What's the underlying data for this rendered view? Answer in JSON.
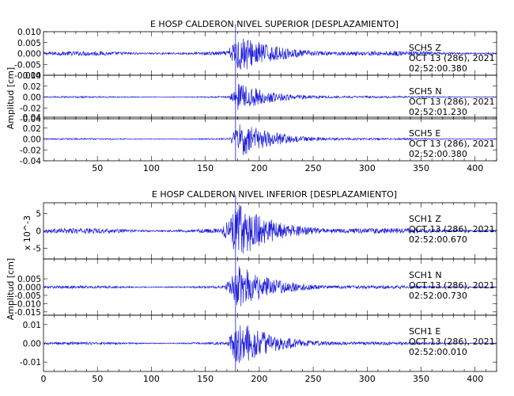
{
  "chart_data": [
    {
      "type": "line",
      "title": "E HOSP CALDERON NIVEL SUPERIOR [DESPLAZAMIENTO]",
      "ylabel": "Amplitud [cm]",
      "xlim": [
        0,
        420
      ],
      "xticks": [
        50,
        100,
        150,
        200,
        250,
        300,
        350,
        400
      ],
      "event_marker_x": 178,
      "series": [
        {
          "name": "SCH5  Z",
          "date": "OCT 13 (286), 2021",
          "time": "02:52:00.380",
          "ylim": [
            -0.01,
            0.01
          ],
          "yticks": [
            "0.010",
            "0.005",
            "0.000",
            "-0.005",
            "-0.010"
          ],
          "peak_amplitude": 0.008,
          "noise_level": 0.0007,
          "onset_x": 170,
          "peak_x": 182
        },
        {
          "name": "SCH5  N",
          "date": "OCT 13 (286), 2021",
          "time": "02:52:01.230",
          "ylim": [
            -0.04,
            0.04
          ],
          "yticks": [
            "0.04",
            "0.02",
            "0.00",
            "-0.02",
            "-0.04"
          ],
          "peak_amplitude": 0.025,
          "noise_level": 0.001,
          "onset_x": 172,
          "peak_x": 181
        },
        {
          "name": "SCH5  E",
          "date": "OCT 13 (286), 2021",
          "time": "02:52:00.380",
          "ylim": [
            -0.04,
            0.04
          ],
          "yticks": [
            "0.04",
            "0.02",
            "0.00",
            "-0.02",
            "-0.04"
          ],
          "peak_amplitude": 0.03,
          "noise_level": 0.001,
          "onset_x": 172,
          "peak_x": 184
        }
      ]
    },
    {
      "type": "line",
      "title": "E HOSP CALDERON NIVEL INFERIOR [DESPLAZAMIENTO]",
      "ylabel": "Amplitud [cm]",
      "xlim": [
        0,
        420
      ],
      "xticks": [
        0,
        50,
        100,
        150,
        200,
        250,
        300,
        350,
        400
      ],
      "event_marker_x": 178,
      "series": [
        {
          "name": "SCH1  Z",
          "date": "OCT 13 (286), 2021",
          "time": "02:52:00.670",
          "ylabel_extra": "x 10^-3",
          "ylim": [
            -8,
            8
          ],
          "yticks": [
            "5",
            "0",
            "-5"
          ],
          "peak_amplitude": 7,
          "noise_level": 0.5,
          "onset_x": 165,
          "peak_x": 182
        },
        {
          "name": "SCH1  N",
          "date": "OCT 13 (286), 2021",
          "time": "02:52:00.730",
          "ylim": [
            -0.017,
            0.017
          ],
          "yticks": [
            "0.005",
            "0.000",
            "-0.005",
            "-0.010",
            "-0.015"
          ],
          "peak_amplitude": 0.013,
          "noise_level": 0.0006,
          "onset_x": 168,
          "peak_x": 180
        },
        {
          "name": "SCH1  E",
          "date": "OCT 13 (286), 2021",
          "time": "02:52:00.010",
          "ylim": [
            -0.015,
            0.015
          ],
          "yticks": [
            "0.01",
            "0.00",
            "-0.01"
          ],
          "peak_amplitude": 0.012,
          "noise_level": 0.0005,
          "onset_x": 170,
          "peak_x": 181
        }
      ]
    }
  ],
  "axis_text": {
    "y_label": "Amplitud [cm]",
    "scale_label": "x 10^-3"
  },
  "colors": {
    "trace": "#1f1fd8",
    "axis": "#000000",
    "background": "#ffffff"
  }
}
